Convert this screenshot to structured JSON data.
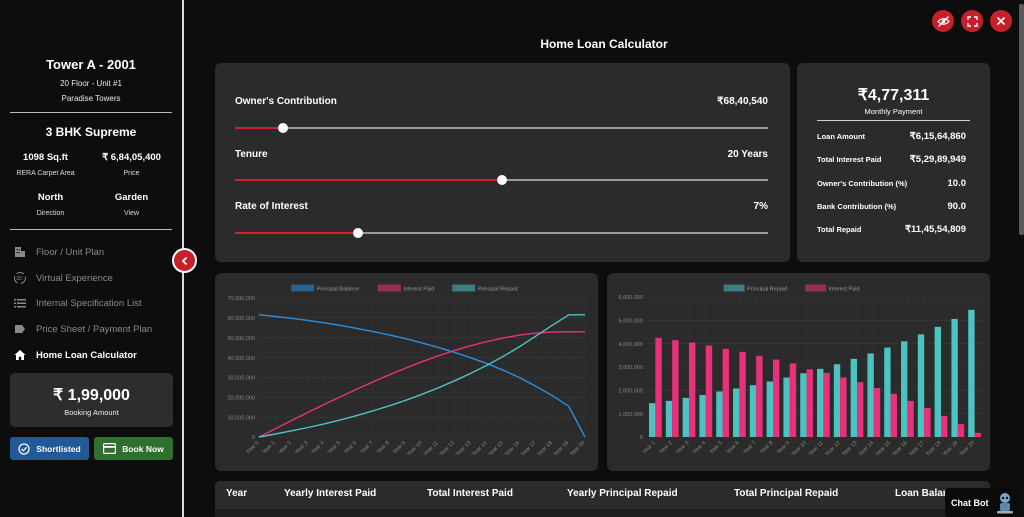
{
  "unit": {
    "title": "Tower A - 2001",
    "floor_unit": "20 Floor - Unit #1",
    "project": "Paradise Towers",
    "config": "3 BHK Supreme",
    "area_value": "1098 Sq.ft",
    "area_label": "RERA Carpet Area",
    "price_value": "₹ 6,84,05,400",
    "price_label": "Price",
    "direction_value": "North",
    "direction_label": "Direction",
    "view_value": "Garden",
    "view_label": "View"
  },
  "menu": [
    {
      "label": "Floor / Unit Plan",
      "icon": "building-icon"
    },
    {
      "label": "Virtual Experience",
      "icon": "3d-icon"
    },
    {
      "label": "Internal Specification List",
      "icon": "list-icon"
    },
    {
      "label": "Price Sheet / Payment Plan",
      "icon": "price-tag-icon"
    },
    {
      "label": "Home Loan Calculator",
      "icon": "home-icon"
    }
  ],
  "booking": {
    "amount": "₹ 1,99,000",
    "label": "Booking Amount"
  },
  "buttons": {
    "shortlisted": "Shortlisted",
    "book_now": "Book Now"
  },
  "page_title": "Home Loan Calculator",
  "sliders": [
    {
      "label": "Owner's Contribution",
      "value": "₹68,40,540",
      "fraction": 0.09
    },
    {
      "label": "Tenure",
      "value": "20 Years",
      "fraction": 0.5
    },
    {
      "label": "Rate of Interest",
      "value": "7%",
      "fraction": 0.23
    }
  ],
  "summary": {
    "monthly_amount": "₹4,77,311",
    "monthly_label": "Monthly Payment",
    "rows": [
      {
        "label": "Loan Amount",
        "value": "₹6,15,64,860"
      },
      {
        "label": "Total Interest Paid",
        "value": "₹5,29,89,949"
      },
      {
        "label": "Owner's Contribution (%)",
        "value": "10.0"
      },
      {
        "label": "Bank Contribution (%)",
        "value": "90.0"
      },
      {
        "label": "Total Repaid",
        "value": "₹11,45,54,809"
      }
    ]
  },
  "colors": {
    "accent": "#c8202a",
    "blue": "#2a8fe0",
    "pink": "#e8317a",
    "teal": "#4cc3c3"
  },
  "chart_data": [
    {
      "type": "line",
      "x": [
        "Year 0",
        "Year 1",
        "Year 2",
        "Year 3",
        "Year 4",
        "Year 5",
        "Year 6",
        "Year 7",
        "Year 8",
        "Year 9",
        "Year 10",
        "Year 11",
        "Year 12",
        "Year 13",
        "Year 14",
        "Year 15",
        "Year 16",
        "Year 17",
        "Year 18",
        "Year 19",
        "Year 20"
      ],
      "ylim": [
        0,
        70000000
      ],
      "yticks": [
        "0",
        "10,000,000",
        "20,000,000",
        "30,000,000",
        "40,000,000",
        "50,000,000",
        "60,000,000",
        "70,000,000"
      ],
      "legend": "top-center",
      "series": [
        {
          "name": "Principal Balance",
          "color": "#2a8fe0",
          "values": [
            61564860,
            60700000,
            59800000,
            58700000,
            57500000,
            56200000,
            54700000,
            53100000,
            51400000,
            49500000,
            47400000,
            45100000,
            42600000,
            39900000,
            36900000,
            33600000,
            29800000,
            25500000,
            20800000,
            15500000,
            0
          ]
        },
        {
          "name": "Interest Paid",
          "color": "#e8317a",
          "values": [
            0,
            4200000,
            8300000,
            12400000,
            16400000,
            20300000,
            24100000,
            27800000,
            31300000,
            34700000,
            37900000,
            40900000,
            43600000,
            46000000,
            48100000,
            49900000,
            51300000,
            52300000,
            52900000,
            53000000,
            52990000
          ]
        },
        {
          "name": "Principal Repaid",
          "color": "#4cc3c3",
          "values": [
            0,
            1500000,
            3100000,
            4800000,
            6600000,
            8600000,
            10800000,
            13200000,
            15700000,
            18500000,
            21500000,
            24800000,
            28300000,
            32100000,
            36200000,
            40700000,
            45600000,
            50900000,
            56300000,
            61500000,
            61600000
          ]
        }
      ]
    },
    {
      "type": "bar",
      "categories": [
        "Year 1",
        "Year 2",
        "Year 3",
        "Year 4",
        "Year 5",
        "Year 6",
        "Year 7",
        "Year 8",
        "Year 9",
        "Year 10",
        "Year 11",
        "Year 12",
        "Year 13",
        "Year 14",
        "Year 15",
        "Year 16",
        "Year 17",
        "Year 18",
        "Year 19",
        "Year 20"
      ],
      "ylim": [
        0,
        6000000
      ],
      "yticks": [
        "0",
        "1,000,000",
        "2,000,000",
        "3,000,000",
        "4,000,000",
        "5,000,000",
        "6,000,000"
      ],
      "legend": "top-center",
      "series": [
        {
          "name": "Principal Repaid",
          "color": "#4cc3c3",
          "values": [
            1450000,
            1550000,
            1680000,
            1800000,
            1950000,
            2080000,
            2220000,
            2380000,
            2550000,
            2730000,
            2920000,
            3120000,
            3350000,
            3580000,
            3830000,
            4100000,
            4400000,
            4720000,
            5060000,
            5450000
          ]
        },
        {
          "name": "Interest Paid",
          "color": "#e8317a",
          "values": [
            4250000,
            4150000,
            4050000,
            3920000,
            3780000,
            3650000,
            3480000,
            3320000,
            3150000,
            2900000,
            2750000,
            2550000,
            2350000,
            2100000,
            1850000,
            1550000,
            1250000,
            900000,
            550000,
            180000
          ]
        }
      ]
    }
  ],
  "table": {
    "headers": [
      "Year",
      "Yearly Interest Paid",
      "Total Interest Paid",
      "Yearly Principal Repaid",
      "Total Principal Repaid",
      "Loan Balance"
    ]
  },
  "chatbot": {
    "label": "Chat Bot"
  }
}
